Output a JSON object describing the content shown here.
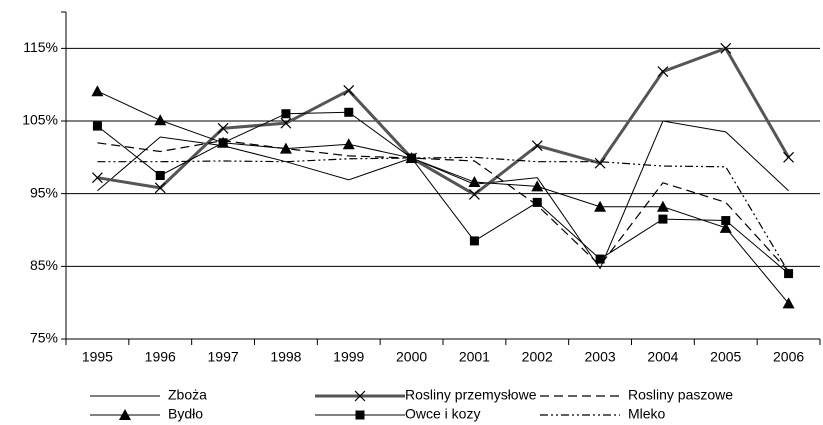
{
  "chart_data": {
    "type": "line",
    "categories": [
      "1995",
      "1996",
      "1997",
      "1998",
      "1999",
      "2000",
      "2001",
      "2002",
      "2003",
      "2004",
      "2005",
      "2006"
    ],
    "series": [
      {
        "name": "Zboża",
        "color": "#000000",
        "width": 1,
        "dash": "none",
        "marker": "none",
        "values": [
          95.4,
          102.8,
          101.6,
          99.4,
          96.9,
          99.9,
          96.3,
          97.2,
          84.7,
          105,
          103.5,
          95.4
        ]
      },
      {
        "name": "Rosliny przemysłowe",
        "color": "#555555",
        "width": 3,
        "dash": "none",
        "marker": "x",
        "values": [
          97.2,
          95.8,
          104,
          104.7,
          109.2,
          99.9,
          94.9,
          101.6,
          99.2,
          111.8,
          115,
          100
        ]
      },
      {
        "name": "Rosliny paszowe",
        "color": "#000000",
        "width": 1.2,
        "dash": "9 5",
        "marker": "none",
        "values": [
          102,
          100.8,
          102.3,
          101.2,
          100.2,
          99.9,
          99.5,
          93.4,
          85.1,
          96.5,
          93.8,
          84.3
        ]
      },
      {
        "name": "Bydło",
        "color": "#000000",
        "width": 1,
        "dash": "none",
        "marker": "triangle",
        "values": [
          109.1,
          105.1,
          102,
          101.2,
          101.8,
          99.9,
          96.6,
          96,
          93.2,
          93.2,
          90.3,
          79.9
        ]
      },
      {
        "name": "Owce i kozy",
        "color": "#000000",
        "width": 1,
        "dash": "none",
        "marker": "square",
        "values": [
          104.3,
          97.5,
          102,
          106,
          106.2,
          99.9,
          88.5,
          93.8,
          86,
          91.5,
          91.3,
          84
        ]
      },
      {
        "name": "Mleko",
        "color": "#000000",
        "width": 1.2,
        "dash": "8 3 2 3 2 3",
        "marker": "none",
        "values": [
          99.4,
          99.4,
          99.5,
          99.4,
          99.8,
          99.9,
          100,
          99.4,
          99.4,
          98.8,
          98.7,
          84.2
        ]
      }
    ],
    "ylim": [
      75,
      120
    ],
    "yticks": [
      {
        "value": 75,
        "label": "75%"
      },
      {
        "value": 85,
        "label": "85%"
      },
      {
        "value": 95,
        "label": "95%"
      },
      {
        "value": 105,
        "label": "105%"
      },
      {
        "value": 115,
        "label": "115%"
      }
    ],
    "grid": true,
    "legend": "bottom"
  }
}
